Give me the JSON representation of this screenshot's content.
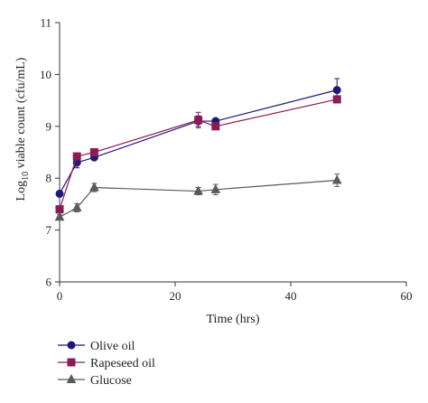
{
  "chart_data": {
    "type": "line",
    "xlabel": "Time (hrs)",
    "ylabel": {
      "prefix": "Log",
      "subscript": "10",
      "rest": " viable count (cfu/mL)"
    },
    "xlim": [
      0,
      60
    ],
    "ylim": [
      6,
      11
    ],
    "x_ticks": [
      0,
      20,
      40,
      60
    ],
    "y_ticks": [
      6,
      7,
      8,
      9,
      10,
      11
    ],
    "grid": false,
    "legend_position": "bottom-left",
    "series": [
      {
        "name": "Olive oil",
        "color": "#1f1a7a",
        "marker": "circle",
        "x": [
          0,
          3,
          6,
          24,
          27,
          48
        ],
        "y": [
          7.7,
          8.3,
          8.4,
          9.1,
          9.1,
          9.7
        ],
        "err": [
          0.05,
          0.1,
          0.05,
          0.1,
          0.05,
          0.22
        ]
      },
      {
        "name": "Rapeseed oil",
        "color": "#8c1a55",
        "marker": "square",
        "x": [
          0,
          3,
          6,
          24,
          27,
          48
        ],
        "y": [
          7.4,
          8.42,
          8.5,
          9.12,
          9.0,
          9.52
        ],
        "err": [
          0.05,
          0.05,
          0.05,
          0.15,
          0.05,
          0.05
        ]
      },
      {
        "name": "Glucose",
        "color": "#5a5a5a",
        "marker": "triangle",
        "x": [
          0,
          3,
          6,
          24,
          27,
          48
        ],
        "y": [
          7.25,
          7.43,
          7.82,
          7.75,
          7.78,
          7.96
        ],
        "err": [
          0.05,
          0.08,
          0.08,
          0.07,
          0.1,
          0.12
        ]
      }
    ]
  }
}
